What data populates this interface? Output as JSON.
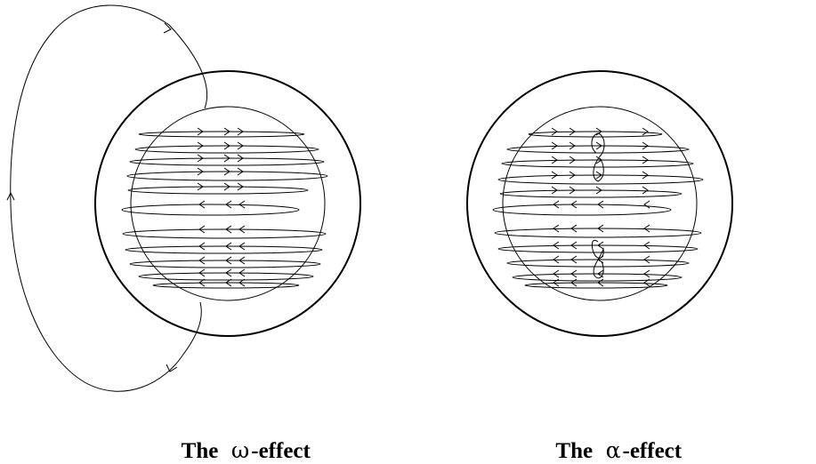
{
  "panels": [
    {
      "id": "omega",
      "caption_word": "The",
      "caption_symbol": "ω",
      "caption_rest": "-effect"
    },
    {
      "id": "alpha",
      "caption_word": "The",
      "caption_symbol": "α",
      "caption_rest": "-effect"
    }
  ]
}
